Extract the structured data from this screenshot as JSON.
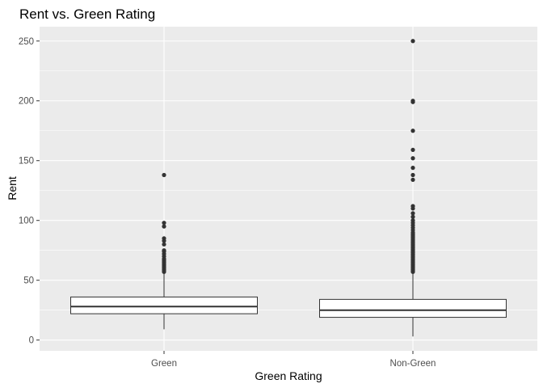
{
  "chart_data": {
    "type": "boxplot",
    "title": "Rent vs. Green Rating",
    "xlabel": "Green Rating",
    "ylabel": "Rent",
    "categories": [
      "Green",
      "Non-Green"
    ],
    "ylim": [
      -9,
      262
    ],
    "yticks": [
      0,
      50,
      100,
      150,
      200,
      250
    ],
    "grid": true,
    "boxes": [
      {
        "category": "Green",
        "whisker_low": 9,
        "q1": 22,
        "median": 28,
        "q3": 36,
        "whisker_high": 56,
        "outliers": [
          57,
          58,
          59,
          60,
          61,
          62,
          63,
          64,
          65,
          66,
          67,
          68,
          70,
          72,
          74,
          75,
          80,
          83,
          85,
          95,
          98,
          138
        ]
      },
      {
        "category": "Non-Green",
        "whisker_low": 3,
        "q1": 19,
        "median": 25,
        "q3": 34,
        "whisker_high": 56,
        "outliers": [
          57,
          58,
          59,
          60,
          61,
          62,
          63,
          64,
          65,
          66,
          67,
          68,
          69,
          70,
          71,
          72,
          73,
          74,
          75,
          76,
          77,
          78,
          79,
          80,
          81,
          82,
          83,
          84,
          85,
          86,
          87,
          88,
          89,
          90,
          92,
          94,
          96,
          98,
          100,
          103,
          106,
          110,
          112,
          134,
          138,
          144,
          152,
          159,
          175,
          199,
          200,
          250
        ]
      }
    ]
  },
  "colors": {
    "panel_background": "#ebebeb",
    "grid_major": "#ffffff",
    "box_fill": "#ffffff",
    "box_stroke": "#333333",
    "outlier": "#333333",
    "tick_text": "#4d4d4d"
  }
}
